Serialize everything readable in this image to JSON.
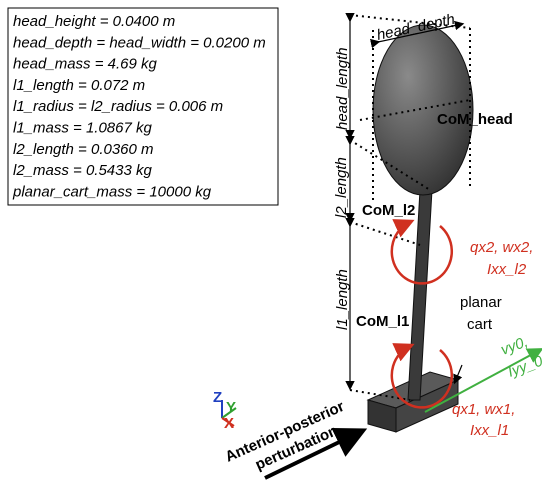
{
  "parameters": [
    "head_height = 0.0400 m",
    "head_depth = head_width = 0.0200 m",
    "head_mass = 4.69 kg",
    "l1_length = 0.072 m",
    "l1_radius = l2_radius = 0.006 m",
    "l1_mass = 1.0867 kg",
    "l2_length = 0.0360 m",
    "l2_mass = 0.5433 kg",
    "planar_cart_mass = 10000 kg"
  ],
  "labels": {
    "head_depth": "head_depth",
    "head_length": "head_length",
    "l2_length": "l2_length",
    "l1_length": "l1_length",
    "com_head": "CoM_head",
    "com_l2": "CoM_l2",
    "com_l1": "CoM_l1",
    "planar_cart": [
      "planar",
      "cart"
    ],
    "joint2": [
      "qx2, wx2,",
      "Ixx_l2"
    ],
    "joint1": [
      "qx1, wx1,",
      "Ixx_l1"
    ],
    "joint0": [
      "vy0,",
      "Iyy_0"
    ],
    "axes": [
      "Z",
      "Y",
      "X"
    ],
    "perturbation": [
      "Anterior-posterior",
      "perturbation"
    ]
  }
}
